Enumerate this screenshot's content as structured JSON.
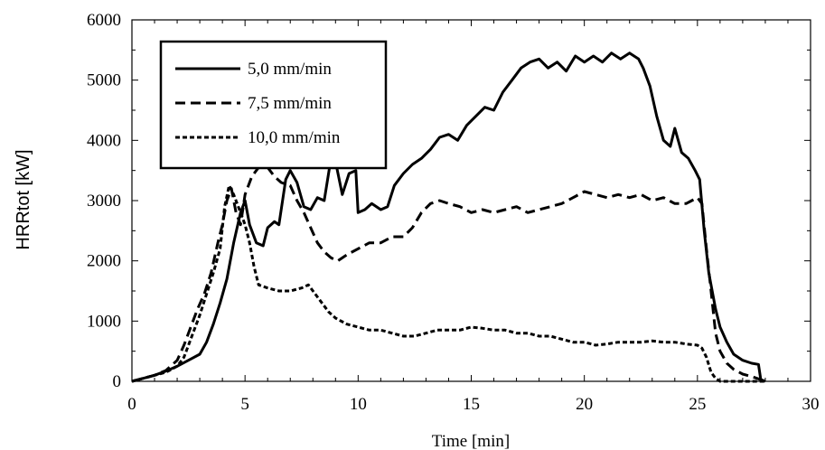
{
  "chart_data": {
    "type": "line",
    "xlabel": "Time [min]",
    "ylabel": "HRRtot [kW]",
    "xlim": [
      0,
      30
    ],
    "ylim": [
      0,
      6000
    ],
    "x_ticks": [
      0,
      5,
      10,
      15,
      20,
      25,
      30
    ],
    "y_ticks": [
      0,
      1000,
      2000,
      3000,
      4000,
      5000,
      6000
    ],
    "grid": false,
    "legend_position": "top-left",
    "series": [
      {
        "name": "5,0 mm/min",
        "style": "solid",
        "points": [
          [
            0,
            0
          ],
          [
            0.5,
            50
          ],
          [
            1,
            100
          ],
          [
            1.5,
            170
          ],
          [
            2,
            250
          ],
          [
            2.5,
            350
          ],
          [
            3,
            450
          ],
          [
            3.3,
            650
          ],
          [
            3.6,
            950
          ],
          [
            3.9,
            1300
          ],
          [
            4.2,
            1700
          ],
          [
            4.5,
            2300
          ],
          [
            4.8,
            2800
          ],
          [
            5.0,
            3000
          ],
          [
            5.2,
            2600
          ],
          [
            5.5,
            2300
          ],
          [
            5.8,
            2250
          ],
          [
            6.0,
            2550
          ],
          [
            6.3,
            2650
          ],
          [
            6.5,
            2600
          ],
          [
            6.8,
            3350
          ],
          [
            7.0,
            3500
          ],
          [
            7.3,
            3300
          ],
          [
            7.6,
            2900
          ],
          [
            7.9,
            2850
          ],
          [
            8.2,
            3050
          ],
          [
            8.5,
            3000
          ],
          [
            8.8,
            3700
          ],
          [
            9.0,
            3650
          ],
          [
            9.3,
            3100
          ],
          [
            9.6,
            3450
          ],
          [
            9.9,
            3500
          ],
          [
            10.0,
            2800
          ],
          [
            10.3,
            2850
          ],
          [
            10.6,
            2950
          ],
          [
            11.0,
            2850
          ],
          [
            11.3,
            2900
          ],
          [
            11.6,
            3250
          ],
          [
            12.0,
            3450
          ],
          [
            12.4,
            3600
          ],
          [
            12.8,
            3700
          ],
          [
            13.2,
            3850
          ],
          [
            13.6,
            4050
          ],
          [
            14.0,
            4100
          ],
          [
            14.4,
            4000
          ],
          [
            14.8,
            4250
          ],
          [
            15.2,
            4400
          ],
          [
            15.6,
            4550
          ],
          [
            16.0,
            4500
          ],
          [
            16.4,
            4800
          ],
          [
            16.8,
            5000
          ],
          [
            17.2,
            5200
          ],
          [
            17.6,
            5300
          ],
          [
            18.0,
            5350
          ],
          [
            18.4,
            5200
          ],
          [
            18.8,
            5300
          ],
          [
            19.2,
            5150
          ],
          [
            19.6,
            5400
          ],
          [
            20.0,
            5300
          ],
          [
            20.4,
            5400
          ],
          [
            20.8,
            5300
          ],
          [
            21.2,
            5450
          ],
          [
            21.6,
            5350
          ],
          [
            22.0,
            5450
          ],
          [
            22.4,
            5350
          ],
          [
            22.6,
            5200
          ],
          [
            22.9,
            4900
          ],
          [
            23.2,
            4400
          ],
          [
            23.5,
            4000
          ],
          [
            23.8,
            3900
          ],
          [
            24.0,
            4200
          ],
          [
            24.3,
            3800
          ],
          [
            24.6,
            3700
          ],
          [
            24.9,
            3500
          ],
          [
            25.1,
            3350
          ],
          [
            25.3,
            2500
          ],
          [
            25.5,
            1800
          ],
          [
            25.8,
            1200
          ],
          [
            26.0,
            900
          ],
          [
            26.3,
            650
          ],
          [
            26.6,
            450
          ],
          [
            27.0,
            350
          ],
          [
            27.4,
            300
          ],
          [
            27.7,
            280
          ],
          [
            27.8,
            30
          ],
          [
            28.0,
            0
          ]
        ]
      },
      {
        "name": "7,5 mm/min",
        "style": "dashed",
        "points": [
          [
            0,
            0
          ],
          [
            0.5,
            50
          ],
          [
            1,
            100
          ],
          [
            1.5,
            180
          ],
          [
            2,
            350
          ],
          [
            2.3,
            600
          ],
          [
            2.6,
            900
          ],
          [
            2.9,
            1200
          ],
          [
            3.2,
            1450
          ],
          [
            3.5,
            1800
          ],
          [
            3.8,
            2300
          ],
          [
            4.0,
            2600
          ],
          [
            4.2,
            3000
          ],
          [
            4.4,
            3200
          ],
          [
            4.6,
            2800
          ],
          [
            4.8,
            2600
          ],
          [
            5.0,
            3100
          ],
          [
            5.3,
            3400
          ],
          [
            5.6,
            3550
          ],
          [
            6.0,
            3550
          ],
          [
            6.3,
            3400
          ],
          [
            6.6,
            3300
          ],
          [
            7.0,
            3250
          ],
          [
            7.3,
            3000
          ],
          [
            7.6,
            2800
          ],
          [
            7.9,
            2550
          ],
          [
            8.2,
            2300
          ],
          [
            8.5,
            2150
          ],
          [
            8.8,
            2050
          ],
          [
            9.1,
            2000
          ],
          [
            9.5,
            2100
          ],
          [
            10.0,
            2200
          ],
          [
            10.5,
            2300
          ],
          [
            11.0,
            2300
          ],
          [
            11.5,
            2400
          ],
          [
            12.0,
            2400
          ],
          [
            12.4,
            2550
          ],
          [
            12.8,
            2800
          ],
          [
            13.2,
            2950
          ],
          [
            13.6,
            3000
          ],
          [
            14.0,
            2950
          ],
          [
            14.5,
            2900
          ],
          [
            15.0,
            2800
          ],
          [
            15.5,
            2850
          ],
          [
            16.0,
            2800
          ],
          [
            16.5,
            2850
          ],
          [
            17.0,
            2900
          ],
          [
            17.5,
            2800
          ],
          [
            18.0,
            2850
          ],
          [
            18.5,
            2900
          ],
          [
            19.0,
            2950
          ],
          [
            19.5,
            3050
          ],
          [
            20.0,
            3150
          ],
          [
            20.5,
            3100
          ],
          [
            21.0,
            3050
          ],
          [
            21.5,
            3100
          ],
          [
            22.0,
            3050
          ],
          [
            22.5,
            3100
          ],
          [
            23.0,
            3000
          ],
          [
            23.5,
            3050
          ],
          [
            24.0,
            2950
          ],
          [
            24.5,
            2950
          ],
          [
            25.0,
            3050
          ],
          [
            25.2,
            2950
          ],
          [
            25.4,
            2200
          ],
          [
            25.6,
            1500
          ],
          [
            25.8,
            800
          ],
          [
            26.0,
            500
          ],
          [
            26.3,
            300
          ],
          [
            26.6,
            200
          ],
          [
            27.0,
            120
          ],
          [
            27.4,
            80
          ],
          [
            27.7,
            40
          ],
          [
            28.0,
            0
          ]
        ]
      },
      {
        "name": "10,0 mm/min",
        "style": "dotted",
        "points": [
          [
            0,
            0
          ],
          [
            0.5,
            50
          ],
          [
            1,
            100
          ],
          [
            1.5,
            150
          ],
          [
            2,
            250
          ],
          [
            2.3,
            400
          ],
          [
            2.6,
            700
          ],
          [
            3.0,
            1100
          ],
          [
            3.3,
            1450
          ],
          [
            3.6,
            1800
          ],
          [
            3.9,
            2200
          ],
          [
            4.1,
            2900
          ],
          [
            4.3,
            3250
          ],
          [
            4.5,
            3100
          ],
          [
            4.8,
            2800
          ],
          [
            5.0,
            2600
          ],
          [
            5.2,
            2300
          ],
          [
            5.4,
            1900
          ],
          [
            5.6,
            1600
          ],
          [
            6.0,
            1550
          ],
          [
            6.5,
            1500
          ],
          [
            7.0,
            1500
          ],
          [
            7.5,
            1550
          ],
          [
            7.8,
            1600
          ],
          [
            8.1,
            1450
          ],
          [
            8.4,
            1300
          ],
          [
            8.7,
            1150
          ],
          [
            9.0,
            1050
          ],
          [
            9.5,
            950
          ],
          [
            10.0,
            900
          ],
          [
            10.5,
            850
          ],
          [
            11.0,
            850
          ],
          [
            11.5,
            800
          ],
          [
            12.0,
            750
          ],
          [
            12.5,
            750
          ],
          [
            13.0,
            800
          ],
          [
            13.5,
            850
          ],
          [
            14.0,
            850
          ],
          [
            14.5,
            850
          ],
          [
            15.0,
            900
          ],
          [
            15.5,
            880
          ],
          [
            16.0,
            850
          ],
          [
            16.5,
            850
          ],
          [
            17.0,
            800
          ],
          [
            17.5,
            800
          ],
          [
            18.0,
            750
          ],
          [
            18.5,
            750
          ],
          [
            19.0,
            700
          ],
          [
            19.5,
            650
          ],
          [
            20.0,
            650
          ],
          [
            20.5,
            600
          ],
          [
            21.0,
            620
          ],
          [
            21.5,
            650
          ],
          [
            22.0,
            650
          ],
          [
            22.5,
            650
          ],
          [
            23.0,
            670
          ],
          [
            23.5,
            650
          ],
          [
            24.0,
            650
          ],
          [
            24.5,
            620
          ],
          [
            25.0,
            600
          ],
          [
            25.2,
            550
          ],
          [
            25.4,
            400
          ],
          [
            25.6,
            150
          ],
          [
            25.8,
            50
          ],
          [
            26.0,
            0
          ],
          [
            28.0,
            0
          ]
        ]
      }
    ]
  }
}
